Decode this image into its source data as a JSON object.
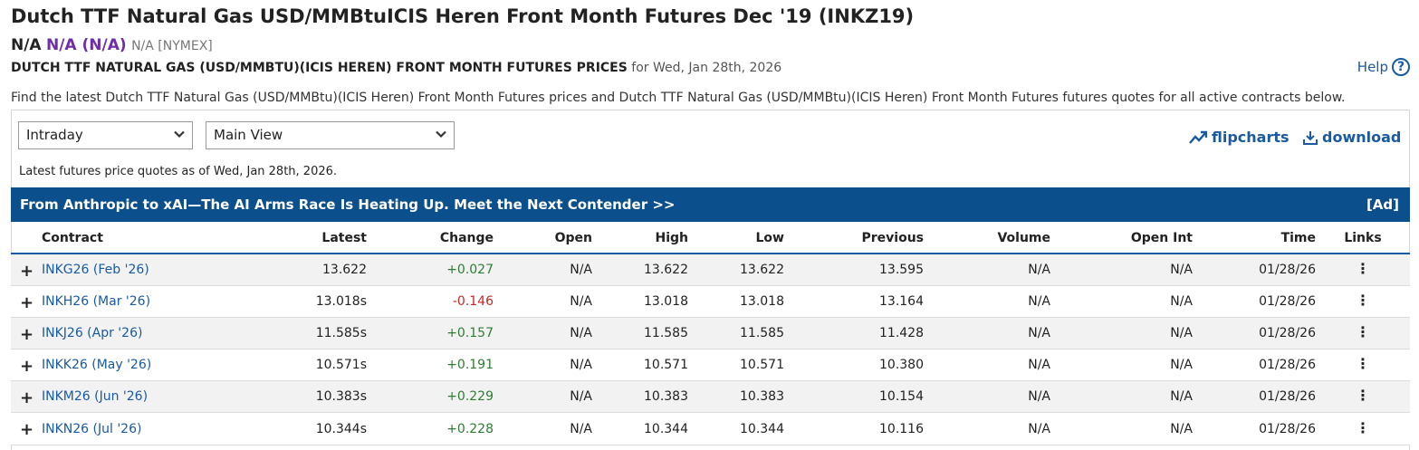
{
  "header": {
    "title": "Dutch TTF Natural Gas USD/MMBtuICIS Heren Front Month Futures Dec '19 (INKZ19)",
    "last": "N/A",
    "change": "N/A (N/A)",
    "exchange": "N/A [NYMEX]",
    "prices_heading": "DUTCH TTF NATURAL GAS (USD/MMBTU)(ICIS HEREN) FRONT MONTH FUTURES PRICES",
    "prices_date": "for Wed, Jan 28th, 2026",
    "help_label": "Help",
    "description": "Find the latest Dutch TTF Natural Gas (USD/MMBtu)(ICIS Heren) Front Month Futures prices and Dutch TTF Natural Gas (USD/MMBtu)(ICIS Heren) Front Month Futures futures quotes for all active contracts below."
  },
  "controls": {
    "period_select": "Intraday",
    "view_select": "Main View",
    "flipcharts_label": "flipcharts",
    "download_label": "download",
    "as_of": "Latest futures price quotes as of Wed, Jan 28th, 2026."
  },
  "ad": {
    "text": "From Anthropic to xAI—The AI Arms Race Is Heating Up. Meet the Next Contender >>",
    "tag": "[Ad]"
  },
  "table": {
    "columns": [
      "Contract",
      "Latest",
      "Change",
      "Open",
      "High",
      "Low",
      "Previous",
      "Volume",
      "Open Int",
      "Time",
      "Links"
    ],
    "rows": [
      {
        "contract": "INKG26 (Feb '26)",
        "latest": "13.622",
        "change": "+0.027",
        "dir": "pos",
        "open": "N/A",
        "high": "13.622",
        "low": "13.622",
        "previous": "13.595",
        "volume": "N/A",
        "open_int": "N/A",
        "time": "01/28/26"
      },
      {
        "contract": "INKH26 (Mar '26)",
        "latest": "13.018s",
        "change": "-0.146",
        "dir": "neg",
        "open": "N/A",
        "high": "13.018",
        "low": "13.018",
        "previous": "13.164",
        "volume": "N/A",
        "open_int": "N/A",
        "time": "01/28/26"
      },
      {
        "contract": "INKJ26 (Apr '26)",
        "latest": "11.585s",
        "change": "+0.157",
        "dir": "pos",
        "open": "N/A",
        "high": "11.585",
        "low": "11.585",
        "previous": "11.428",
        "volume": "N/A",
        "open_int": "N/A",
        "time": "01/28/26"
      },
      {
        "contract": "INKK26 (May '26)",
        "latest": "10.571s",
        "change": "+0.191",
        "dir": "pos",
        "open": "N/A",
        "high": "10.571",
        "low": "10.571",
        "previous": "10.380",
        "volume": "N/A",
        "open_int": "N/A",
        "time": "01/28/26"
      },
      {
        "contract": "INKM26 (Jun '26)",
        "latest": "10.383s",
        "change": "+0.229",
        "dir": "pos",
        "open": "N/A",
        "high": "10.383",
        "low": "10.383",
        "previous": "10.154",
        "volume": "N/A",
        "open_int": "N/A",
        "time": "01/28/26"
      },
      {
        "contract": "INKN26 (Jul '26)",
        "latest": "10.344s",
        "change": "+0.228",
        "dir": "pos",
        "open": "N/A",
        "high": "10.344",
        "low": "10.344",
        "previous": "10.116",
        "volume": "N/A",
        "open_int": "N/A",
        "time": "01/28/26"
      }
    ]
  },
  "icons": {
    "expand": "plus-icon",
    "links": "more-vertical-icon",
    "flipcharts": "trend-up-icon",
    "download": "download-icon",
    "help": "help-circle-icon",
    "select": "chevron-down-icon"
  },
  "colors": {
    "accent": "#1a5aa0",
    "ad_bg": "#0b4f8c",
    "positive": "#2e7d32",
    "negative": "#c62828",
    "change_na": "#6f2da8"
  }
}
